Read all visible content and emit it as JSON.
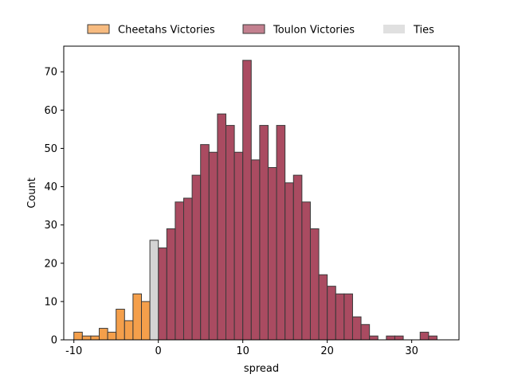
{
  "chart_data": {
    "type": "bar",
    "title": "",
    "xlabel": "spread",
    "ylabel": "Count",
    "xlim": [
      -11.2,
      35.6
    ],
    "ylim": [
      0,
      76.7
    ],
    "x_ticks": [
      -10,
      0,
      10,
      20,
      30
    ],
    "y_ticks": [
      0,
      10,
      20,
      30,
      40,
      50,
      60,
      70
    ],
    "grid": false,
    "legend_position": "top-center",
    "bin_width": 1,
    "series": [
      {
        "name": "Cheetahs Victories",
        "color": "#f28e2b",
        "bins": [
          {
            "x": -10,
            "count": 2
          },
          {
            "x": -9,
            "count": 1
          },
          {
            "x": -8,
            "count": 1
          },
          {
            "x": -7,
            "count": 3
          },
          {
            "x": -6,
            "count": 2
          },
          {
            "x": -5,
            "count": 8
          },
          {
            "x": -4,
            "count": 5
          },
          {
            "x": -3,
            "count": 12
          },
          {
            "x": -2,
            "count": 10
          }
        ]
      },
      {
        "name": "Toulon Victories",
        "color": "#9b2c45",
        "bins": [
          {
            "x": 0,
            "count": 24
          },
          {
            "x": 1,
            "count": 29
          },
          {
            "x": 2,
            "count": 36
          },
          {
            "x": 3,
            "count": 37
          },
          {
            "x": 4,
            "count": 43
          },
          {
            "x": 5,
            "count": 51
          },
          {
            "x": 6,
            "count": 49
          },
          {
            "x": 7,
            "count": 59
          },
          {
            "x": 8,
            "count": 56
          },
          {
            "x": 9,
            "count": 49
          },
          {
            "x": 10,
            "count": 73
          },
          {
            "x": 11,
            "count": 47
          },
          {
            "x": 12,
            "count": 56
          },
          {
            "x": 13,
            "count": 45
          },
          {
            "x": 14,
            "count": 56
          },
          {
            "x": 15,
            "count": 41
          },
          {
            "x": 16,
            "count": 43
          },
          {
            "x": 17,
            "count": 36
          },
          {
            "x": 18,
            "count": 29
          },
          {
            "x": 19,
            "count": 17
          },
          {
            "x": 20,
            "count": 14
          },
          {
            "x": 21,
            "count": 12
          },
          {
            "x": 22,
            "count": 12
          },
          {
            "x": 23,
            "count": 6
          },
          {
            "x": 24,
            "count": 4
          },
          {
            "x": 25,
            "count": 1
          },
          {
            "x": 27,
            "count": 1
          },
          {
            "x": 28,
            "count": 1
          },
          {
            "x": 31,
            "count": 2
          },
          {
            "x": 32,
            "count": 1
          }
        ]
      },
      {
        "name": "Ties",
        "color": "#cccccc",
        "bins": [
          {
            "x": -1,
            "count": 26
          }
        ]
      }
    ]
  }
}
